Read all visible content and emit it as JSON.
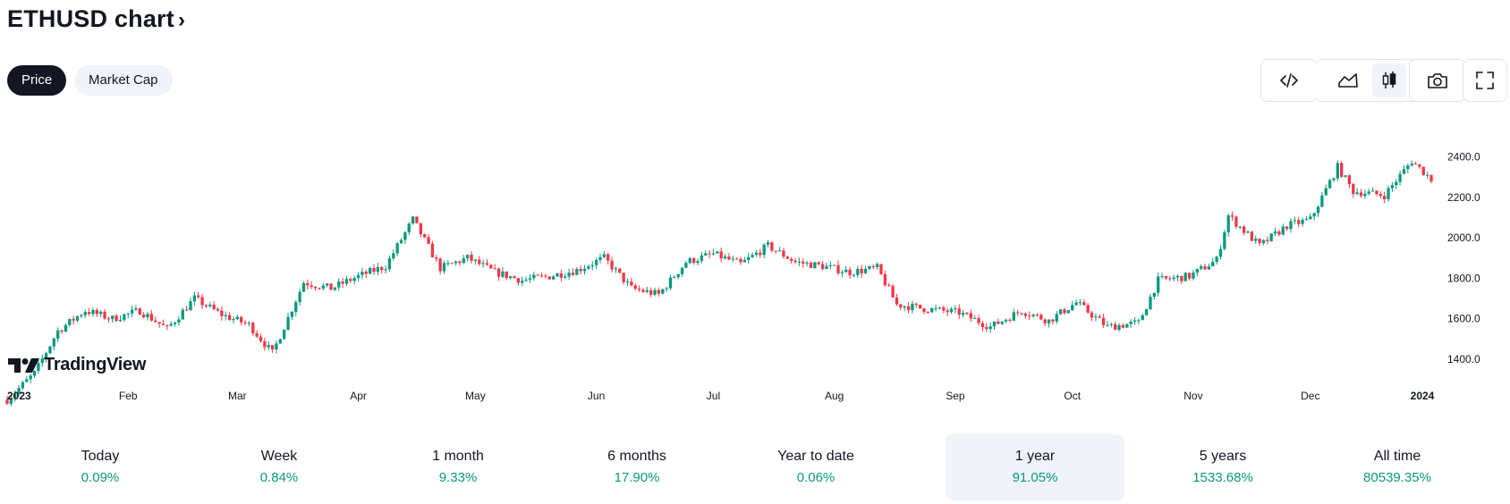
{
  "header": {
    "title": "ETHUSD chart",
    "chevron": "›"
  },
  "tabs": [
    {
      "label": "Price",
      "active": true
    },
    {
      "label": "Market Cap",
      "active": false
    }
  ],
  "toolbar": {
    "embed_icon": "code-icon",
    "area_icon": "area-chart-icon",
    "candle_icon": "candlestick-icon",
    "snapshot_icon": "camera-icon",
    "fullscreen_icon": "fullscreen-icon"
  },
  "branding": {
    "logo_text": "TradingView"
  },
  "colors": {
    "up": "#089981",
    "down": "#f23645",
    "text": "#131722",
    "selected_bg": "#f0f3fa"
  },
  "chart_data": {
    "type": "candlestick",
    "symbol": "ETHUSD",
    "y_ticks": [
      "2400.0",
      "2200.0",
      "2000.0",
      "1800.0",
      "1600.0",
      "1400.0"
    ],
    "x_ticks": [
      "2023",
      "Feb",
      "Mar",
      "Apr",
      "May",
      "Jun",
      "Jul",
      "Aug",
      "Sep",
      "Oct",
      "Nov",
      "Dec",
      "2024"
    ],
    "ylim": [
      1300,
      2450
    ],
    "close_path": [
      [
        "2023-01-01",
        1200
      ],
      [
        "2023-01-08",
        1330
      ],
      [
        "2023-01-14",
        1540
      ],
      [
        "2023-01-21",
        1640
      ],
      [
        "2023-01-28",
        1600
      ],
      [
        "2023-02-04",
        1640
      ],
      [
        "2023-02-11",
        1550
      ],
      [
        "2023-02-18",
        1700
      ],
      [
        "2023-02-25",
        1620
      ],
      [
        "2023-03-04",
        1570
      ],
      [
        "2023-03-10",
        1430
      ],
      [
        "2023-03-18",
        1780
      ],
      [
        "2023-03-25",
        1750
      ],
      [
        "2023-04-01",
        1810
      ],
      [
        "2023-04-08",
        1860
      ],
      [
        "2023-04-15",
        2090
      ],
      [
        "2023-04-22",
        1850
      ],
      [
        "2023-04-29",
        1900
      ],
      [
        "2023-05-06",
        1830
      ],
      [
        "2023-05-13",
        1790
      ],
      [
        "2023-05-20",
        1810
      ],
      [
        "2023-05-27",
        1840
      ],
      [
        "2023-06-03",
        1900
      ],
      [
        "2023-06-10",
        1750
      ],
      [
        "2023-06-17",
        1720
      ],
      [
        "2023-06-24",
        1880
      ],
      [
        "2023-07-01",
        1920
      ],
      [
        "2023-07-08",
        1870
      ],
      [
        "2023-07-15",
        1960
      ],
      [
        "2023-07-22",
        1880
      ],
      [
        "2023-07-29",
        1860
      ],
      [
        "2023-08-05",
        1830
      ],
      [
        "2023-08-12",
        1850
      ],
      [
        "2023-08-17",
        1670
      ],
      [
        "2023-08-24",
        1650
      ],
      [
        "2023-09-02",
        1630
      ],
      [
        "2023-09-10",
        1560
      ],
      [
        "2023-09-18",
        1640
      ],
      [
        "2023-09-25",
        1590
      ],
      [
        "2023-10-02",
        1680
      ],
      [
        "2023-10-10",
        1560
      ],
      [
        "2023-10-18",
        1580
      ],
      [
        "2023-10-23",
        1790
      ],
      [
        "2023-10-31",
        1810
      ],
      [
        "2023-11-07",
        1890
      ],
      [
        "2023-11-10",
        2110
      ],
      [
        "2023-11-18",
        1960
      ],
      [
        "2023-11-25",
        2060
      ],
      [
        "2023-12-01",
        2090
      ],
      [
        "2023-12-08",
        2350
      ],
      [
        "2023-12-12",
        2230
      ],
      [
        "2023-12-20",
        2210
      ],
      [
        "2023-12-27",
        2380
      ],
      [
        "2024-01-01",
        2290
      ]
    ]
  },
  "performance": [
    {
      "label": "Today",
      "value": "0.09%",
      "selected": false
    },
    {
      "label": "Week",
      "value": "0.84%",
      "selected": false
    },
    {
      "label": "1 month",
      "value": "9.33%",
      "selected": false
    },
    {
      "label": "6 months",
      "value": "17.90%",
      "selected": false
    },
    {
      "label": "Year to date",
      "value": "0.06%",
      "selected": false
    },
    {
      "label": "1 year",
      "value": "91.05%",
      "selected": true
    },
    {
      "label": "5 years",
      "value": "1533.68%",
      "selected": false
    },
    {
      "label": "All time",
      "value": "80539.35%",
      "selected": false
    }
  ]
}
